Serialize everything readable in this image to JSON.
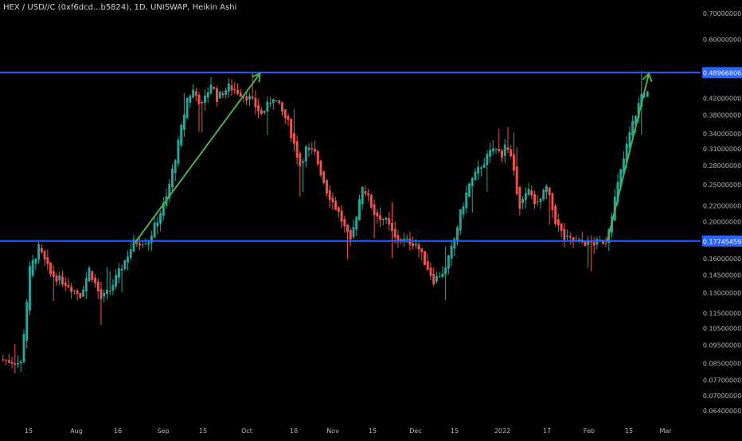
{
  "chart_data": {
    "type": "candlestick",
    "title": "HEX / USD//C (0xf6dcd...b5824), 1D, UNISWAP, Heikin Ashi",
    "y_scale": "log",
    "ylim": [
      0.062,
      0.73
    ],
    "y_ticks": [
      "0.70000000",
      "0.60000000",
      "0.48966806",
      "0.42000000",
      "0.38000000",
      "0.34000000",
      "0.31000000",
      "0.28000000",
      "0.25000000",
      "0.22000000",
      "0.20000000",
      "0.17745459",
      "0.16000000",
      "0.14500000",
      "0.13000000",
      "0.11500000",
      "0.10500000",
      "0.09500000",
      "0.08500000",
      "0.07700000",
      "0.07000000",
      "0.06400000"
    ],
    "x_ticks": [
      "15",
      "Aug",
      "16",
      "Sep",
      "15",
      "Oct",
      "18",
      "Nov",
      "15",
      "Dec",
      "15",
      "2022",
      "17",
      "Feb",
      "15",
      "Mar"
    ],
    "horizontal_lines": [
      {
        "value": 0.48966806,
        "label": "0.48966806",
        "color": "#2962ff"
      },
      {
        "value": 0.17745459,
        "label": "0.17745459",
        "color": "#2962ff"
      }
    ],
    "arrows": [
      {
        "from": {
          "day": 45,
          "price": 0.176
        },
        "to": {
          "day": 87,
          "price": 0.487
        },
        "color": "#4caf50"
      },
      {
        "from": {
          "day": 204,
          "price": 0.178
        },
        "to": {
          "day": 218,
          "price": 0.487
        },
        "color": "#4caf50"
      }
    ],
    "anchors": [
      [
        0,
        0.087
      ],
      [
        7,
        0.085
      ],
      [
        10,
        0.15
      ],
      [
        13,
        0.17
      ],
      [
        17,
        0.145
      ],
      [
        22,
        0.138
      ],
      [
        27,
        0.128
      ],
      [
        30,
        0.15
      ],
      [
        34,
        0.125
      ],
      [
        37,
        0.132
      ],
      [
        45,
        0.176
      ],
      [
        50,
        0.178
      ],
      [
        56,
        0.23
      ],
      [
        60,
        0.32
      ],
      [
        63,
        0.42
      ],
      [
        65,
        0.44
      ],
      [
        68,
        0.4
      ],
      [
        71,
        0.46
      ],
      [
        73,
        0.42
      ],
      [
        77,
        0.45
      ],
      [
        84,
        0.42
      ],
      [
        88,
        0.38
      ],
      [
        92,
        0.425
      ],
      [
        97,
        0.36
      ],
      [
        101,
        0.28
      ],
      [
        103,
        0.31
      ],
      [
        106,
        0.3
      ],
      [
        110,
        0.24
      ],
      [
        114,
        0.21
      ],
      [
        118,
        0.175
      ],
      [
        122,
        0.25
      ],
      [
        126,
        0.21
      ],
      [
        130,
        0.2
      ],
      [
        133,
        0.18
      ],
      [
        140,
        0.175
      ],
      [
        146,
        0.14
      ],
      [
        150,
        0.15
      ],
      [
        153,
        0.18
      ],
      [
        155,
        0.21
      ],
      [
        158,
        0.25
      ],
      [
        162,
        0.28
      ],
      [
        166,
        0.31
      ],
      [
        169,
        0.3
      ],
      [
        170,
        0.32
      ],
      [
        172,
        0.29
      ],
      [
        175,
        0.22
      ],
      [
        178,
        0.24
      ],
      [
        181,
        0.22
      ],
      [
        184,
        0.245
      ],
      [
        187,
        0.2
      ],
      [
        190,
        0.18
      ],
      [
        195,
        0.176
      ],
      [
        200,
        0.175
      ],
      [
        204,
        0.178
      ],
      [
        208,
        0.25
      ],
      [
        212,
        0.34
      ],
      [
        216,
        0.43
      ]
    ],
    "candle_count": 218,
    "up_color": "#26a69a",
    "down_color": "#ef5350"
  }
}
